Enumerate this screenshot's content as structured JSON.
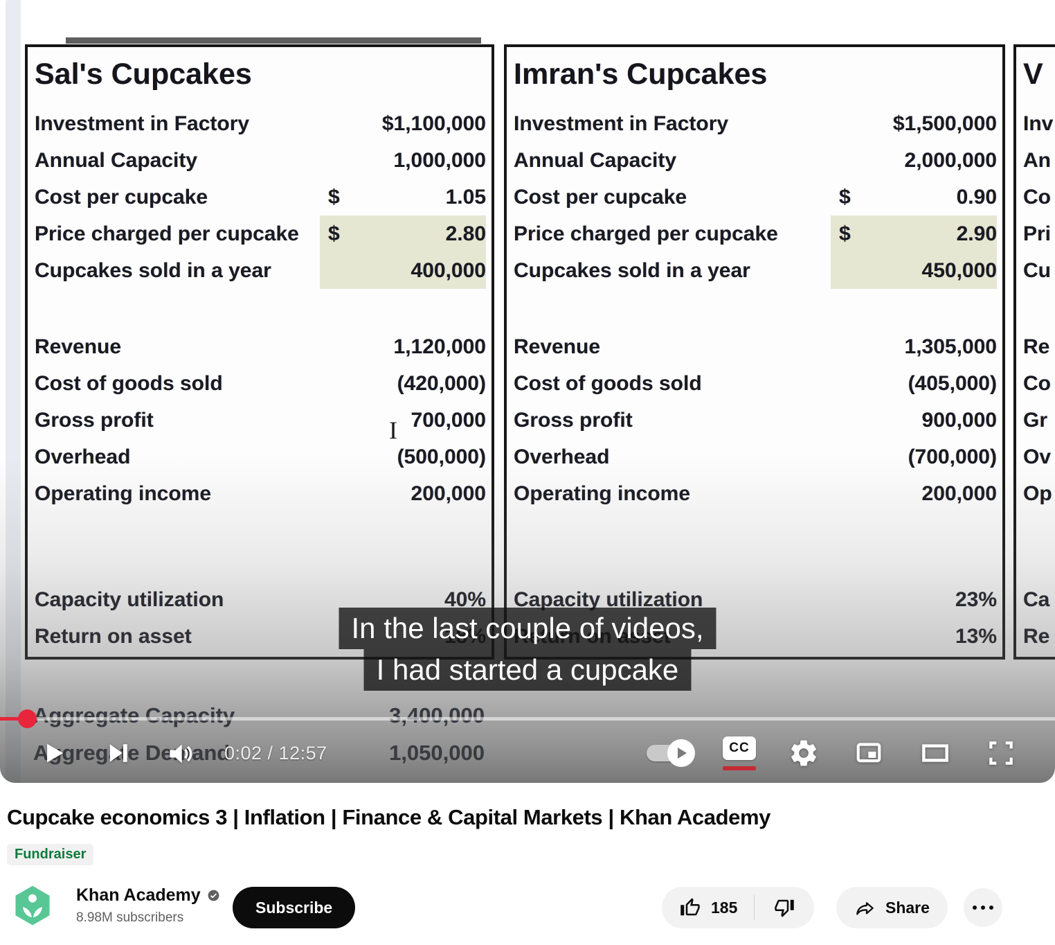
{
  "video": {
    "captions": [
      "In the last couple of videos,",
      "I had started a cupcake"
    ],
    "player": {
      "time": "0:02 / 12:57",
      "cc_label": "CC"
    },
    "sheet": {
      "companies": [
        {
          "name": "Sal's Cupcakes",
          "inputs": [
            {
              "label": "Investment in Factory",
              "value": "$1,100,000"
            },
            {
              "label": "Annual Capacity",
              "value": "1,000,000"
            },
            {
              "label": "Cost per cupcake",
              "dollar": "$",
              "value": "1.05"
            },
            {
              "label": "Price charged per cupcake",
              "dollar": "$",
              "value": "2.80",
              "highlight": true
            },
            {
              "label": "Cupcakes sold in a year",
              "value": "400,000",
              "highlight": true
            }
          ],
          "results": [
            {
              "label": "Revenue",
              "value": "1,120,000"
            },
            {
              "label": "Cost of goods sold",
              "value": "(420,000)"
            },
            {
              "label": "Gross profit",
              "value": "700,000"
            },
            {
              "label": "Overhead",
              "value": "(500,000)"
            },
            {
              "label": "Operating income",
              "value": "200,000"
            }
          ],
          "ratios": [
            {
              "label": "Capacity utilization",
              "value": "40%"
            },
            {
              "label": "Return on asset",
              "value": "18%"
            }
          ]
        },
        {
          "name": "Imran's Cupcakes",
          "inputs": [
            {
              "label": "Investment in Factory",
              "value": "$1,500,000"
            },
            {
              "label": "Annual Capacity",
              "value": "2,000,000"
            },
            {
              "label": "Cost per cupcake",
              "dollar": "$",
              "value": "0.90"
            },
            {
              "label": "Price charged per cupcake",
              "dollar": "$",
              "value": "2.90",
              "highlight": true
            },
            {
              "label": "Cupcakes sold in a year",
              "value": "450,000",
              "highlight": true
            }
          ],
          "results": [
            {
              "label": "Revenue",
              "value": "1,305,000"
            },
            {
              "label": "Cost of goods sold",
              "value": "(405,000)"
            },
            {
              "label": "Gross profit",
              "value": "900,000"
            },
            {
              "label": "Overhead",
              "value": "(700,000)"
            },
            {
              "label": "Operating income",
              "value": "200,000"
            }
          ],
          "ratios": [
            {
              "label": "Capacity utilization",
              "value": "23%"
            },
            {
              "label": "Return on asset",
              "value": "13%"
            }
          ]
        },
        {
          "name": "V",
          "inputs": [
            {
              "label": "Inv"
            },
            {
              "label": "An"
            },
            {
              "label": "Co"
            },
            {
              "label": "Pri"
            },
            {
              "label": "Cu"
            }
          ],
          "results": [
            {
              "label": "Re"
            },
            {
              "label": "Co"
            },
            {
              "label": "Gr"
            },
            {
              "label": "Ov"
            },
            {
              "label": "Op"
            }
          ],
          "ratios": [
            {
              "label": "Ca"
            },
            {
              "label": "Re"
            }
          ]
        }
      ],
      "aggregates": [
        {
          "label": "Aggregate Capacity",
          "value": "3,400,000"
        },
        {
          "label": "Aggregate Demand",
          "value": "1,050,000"
        }
      ]
    }
  },
  "page": {
    "title": "Cupcake economics 3 | Inflation | Finance & Capital Markets | Khan Academy",
    "badge": "Fundraiser",
    "channel": {
      "name": "Khan Academy",
      "subscribers": "8.98M subscribers"
    },
    "subscribe_label": "Subscribe",
    "actions": {
      "like_count": "185",
      "share_label": "Share"
    }
  },
  "icons": {
    "play": "play-triangle",
    "next": "next-track",
    "volume": "speaker-waves",
    "captions": "cc-box",
    "autoplay": "toggle-with-play",
    "settings": "gear",
    "miniplayer": "rect-with-inset",
    "theater": "wide-rect",
    "fullscreen": "corner-brackets",
    "like": "thumb-up-outline",
    "dislike": "thumb-down-outline",
    "share": "curved-arrow",
    "more": "three-dots",
    "verified": "gray-check-circle",
    "scrubber": "red-dot",
    "text_cursor": "i-beam"
  },
  "colors": {
    "youtube_red": "#e8253a",
    "cc_underline_red": "#c42b35",
    "khan_green": "#58c795",
    "badge_green": "#0e7a3c",
    "pill_gray": "#f2f2f2",
    "highlight_cell": "#e6e7d3",
    "caption_bg": "rgba(18,18,18,0.78)",
    "secondary_text": "#606060"
  }
}
